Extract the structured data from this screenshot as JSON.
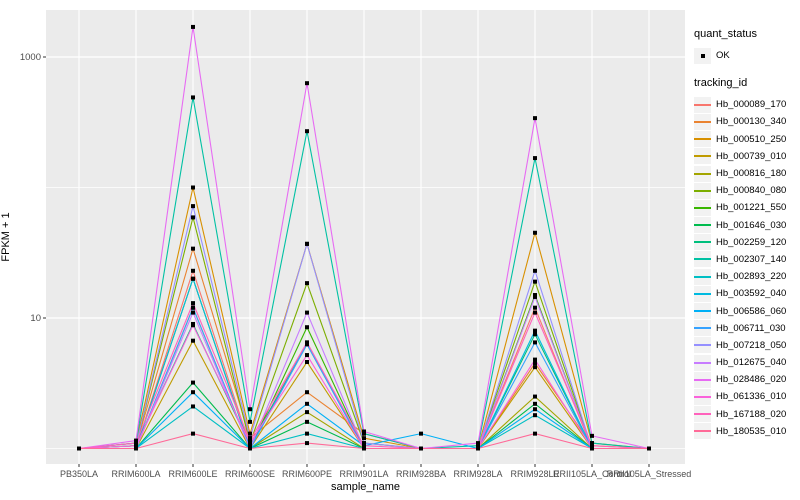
{
  "figure": {
    "panel_background": "#EBEBEB",
    "gridline_color": "#FFFFFF",
    "tick_color": "#333333",
    "tick_label_color": "#4D4D4D",
    "point_color": "#000000"
  },
  "legend": {
    "quant_status_title": "quant_status",
    "quant_status_items": [
      {
        "label": "OK",
        "symbol": "black-point"
      }
    ],
    "tracking_id_title": "tracking_id"
  },
  "chart_data": {
    "type": "line",
    "title": "",
    "xlabel": "sample_name",
    "ylabel": "FPKM + 1",
    "y_scale": "log10",
    "ylim": [
      0.79,
      2250
    ],
    "grid": true,
    "legend_position": "right",
    "y_ticks": [
      {
        "label": "1000",
        "value": 1000
      },
      {
        "label": "10",
        "value": 10
      }
    ],
    "y_minor_values": [
      100,
      1
    ],
    "categories": [
      "PB350LA",
      "RRIM600LA",
      "RRIM600LE",
      "RRIM600SE",
      "RRIM600PE",
      "RRIM901LA",
      "RRIM928BA",
      "RRIM928LA",
      "RRIM928LE",
      "RRII105LA_Control",
      "RRII105LA_Stressed"
    ],
    "series": [
      {
        "name": "Hb_000089_170",
        "color": "#F8766D",
        "values": [
          1,
          1,
          23,
          1.05,
          6.5,
          1,
          1,
          1,
          12,
          1,
          1
        ]
      },
      {
        "name": "Hb_000130_340",
        "color": "#EA8331",
        "values": [
          1,
          1.05,
          34,
          1.2,
          2.7,
          1.3,
          1,
          1,
          4.5,
          1.05,
          1
        ]
      },
      {
        "name": "Hb_000510_250",
        "color": "#D89000",
        "values": [
          1,
          1.1,
          100,
          1.3,
          37,
          1.2,
          1,
          1,
          45,
          1.1,
          1
        ]
      },
      {
        "name": "Hb_000739_010",
        "color": "#C09B00",
        "values": [
          1,
          1,
          6.7,
          1,
          4.6,
          1,
          1,
          1,
          4.2,
          1,
          1
        ]
      },
      {
        "name": "Hb_000816_180",
        "color": "#A3A500",
        "values": [
          1,
          1,
          12,
          1,
          1.9,
          1,
          1,
          1,
          2.5,
          1,
          1
        ]
      },
      {
        "name": "Hb_000840_080",
        "color": "#7CAE00",
        "values": [
          1,
          1.05,
          59,
          1.1,
          18.5,
          1.1,
          1,
          1,
          19,
          1,
          1
        ]
      },
      {
        "name": "Hb_001221_550",
        "color": "#39B600",
        "values": [
          1,
          1,
          20,
          1,
          8.5,
          1,
          1,
          1,
          15,
          1,
          1
        ]
      },
      {
        "name": "Hb_001646_030",
        "color": "#00BB4E",
        "values": [
          1,
          1,
          3.2,
          1,
          1.6,
          1,
          1,
          1,
          2.2,
          1,
          1
        ]
      },
      {
        "name": "Hb_002259_120",
        "color": "#00BF7D",
        "values": [
          1,
          1.05,
          9,
          1.05,
          6.3,
          1,
          1,
          1,
          7.5,
          1,
          1
        ]
      },
      {
        "name": "Hb_002307_140",
        "color": "#00C1A3",
        "values": [
          1,
          1.1,
          490,
          1.6,
          270,
          1.3,
          1,
          1.05,
          168,
          1.1,
          1
        ]
      },
      {
        "name": "Hb_002893_220",
        "color": "#00BFC4",
        "values": [
          1,
          1,
          2.1,
          1,
          1.3,
          1,
          1,
          1,
          1.8,
          1,
          1
        ]
      },
      {
        "name": "Hb_003592_040",
        "color": "#00BAE0",
        "values": [
          1,
          1,
          20,
          1,
          6.3,
          1,
          1,
          1,
          8,
          1,
          1
        ]
      },
      {
        "name": "Hb_006586_060",
        "color": "#00B0F6",
        "values": [
          1,
          1,
          2.7,
          1,
          2.2,
          1.05,
          1.3,
          1,
          2.0,
          1,
          1
        ]
      },
      {
        "name": "Hb_006711_030",
        "color": "#35A2FF",
        "values": [
          1,
          1,
          12,
          1,
          6.3,
          1,
          1,
          1,
          6.5,
          1,
          1
        ]
      },
      {
        "name": "Hb_007218_050",
        "color": "#9590FF",
        "values": [
          1,
          1.05,
          72,
          1.2,
          37,
          1.1,
          1,
          1,
          23,
          1,
          1
        ]
      },
      {
        "name": "Hb_012675_040",
        "color": "#C77CFF",
        "values": [
          1,
          1,
          11,
          1,
          11,
          1,
          1,
          1,
          14.5,
          1,
          1
        ]
      },
      {
        "name": "Hb_028486_020",
        "color": "#E76BF3",
        "values": [
          1,
          1.15,
          1700,
          2.0,
          630,
          1.35,
          1,
          1.1,
          340,
          1.25,
          1
        ]
      },
      {
        "name": "Hb_061336_010",
        "color": "#FA62DB",
        "values": [
          1,
          1.05,
          8.8,
          1.1,
          5.2,
          1,
          1,
          1,
          4.8,
          1,
          1
        ]
      },
      {
        "name": "Hb_167188_020",
        "color": "#FF62BC",
        "values": [
          1,
          1.1,
          13,
          1.15,
          6.5,
          1.05,
          1,
          1,
          11,
          1.05,
          1
        ]
      },
      {
        "name": "Hb_180535_010",
        "color": "#FF6A98",
        "values": [
          1,
          1,
          1.3,
          1,
          1.1,
          1,
          1,
          1,
          1.3,
          1,
          1
        ]
      }
    ]
  }
}
